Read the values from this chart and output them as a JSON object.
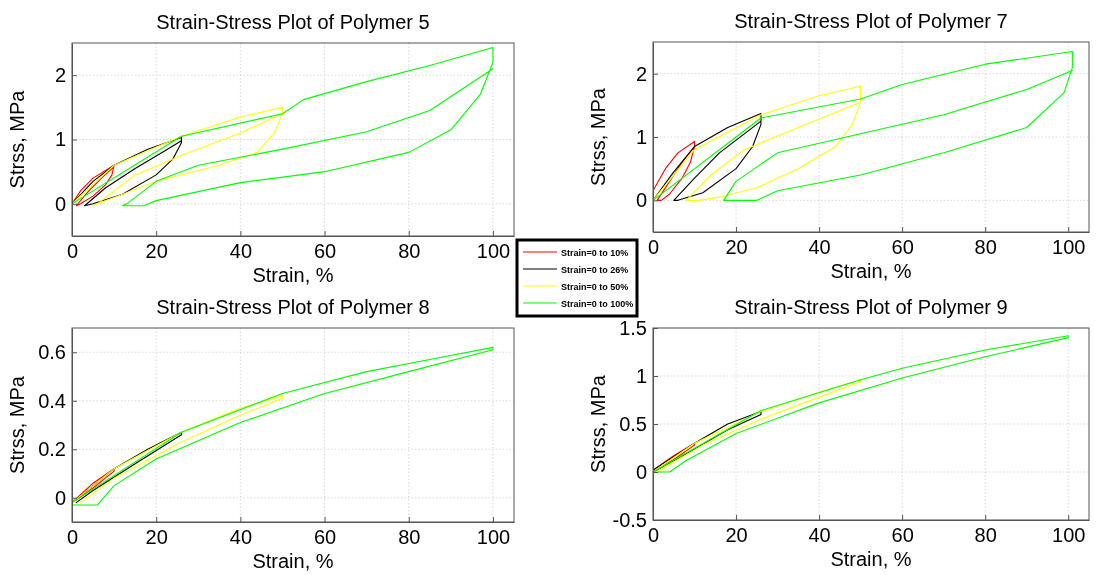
{
  "chart_data": [
    {
      "type": "line",
      "title": "Strain-Stress Plot of Polymer 5",
      "xlabel": "Strain, %",
      "ylabel": "Strss, MPa",
      "xlim": [
        0,
        105
      ],
      "xticks": [
        0,
        20,
        40,
        60,
        80,
        100
      ],
      "ylim": [
        -0.5,
        2.5
      ],
      "yticks": [
        0,
        1,
        2
      ],
      "grid": true,
      "legend": "bottom right",
      "marker": "none",
      "line_style": "solid",
      "series": [
        {
          "name": "Strain=0 to 10%",
          "color": "#ff0000",
          "x": [
            0,
            2,
            5,
            10,
            9.5,
            8,
            5,
            2,
            1,
            1,
            4,
            7,
            10
          ],
          "values": [
            0,
            0.2,
            0.4,
            0.6,
            0.45,
            0.3,
            0.12,
            0,
            -0.03,
            -0.03,
            0.2,
            0.4,
            0.58
          ]
        },
        {
          "name": "Strain=0 to 26%",
          "color": "#000000",
          "x": [
            0,
            5,
            10,
            18,
            26,
            26,
            24,
            20,
            12,
            5,
            3,
            3,
            8,
            15,
            22,
            26
          ],
          "values": [
            0,
            0.35,
            0.6,
            0.85,
            1.03,
            0.95,
            0.7,
            0.45,
            0.15,
            0,
            -0.03,
            -0.03,
            0.25,
            0.55,
            0.82,
            0.98
          ]
        },
        {
          "name": "Strain=0 to 50%",
          "color": "#ffff00",
          "x": [
            0,
            10,
            26,
            40,
            50,
            50,
            48,
            44,
            35,
            20,
            10,
            6,
            5,
            6,
            15,
            26,
            40,
            50
          ],
          "values": [
            0,
            0.6,
            1.05,
            1.35,
            1.5,
            1.4,
            1.1,
            0.8,
            0.6,
            0.35,
            0.1,
            0,
            -0.03,
            0,
            0.45,
            0.75,
            1.1,
            1.4
          ]
        },
        {
          "name": "Strain=0 to 100%",
          "color": "#00ff00",
          "x": [
            0,
            26,
            50,
            55,
            70,
            85,
            100,
            100,
            97,
            90,
            80,
            60,
            40,
            20,
            17,
            12,
            13,
            20,
            30,
            50,
            70,
            85,
            100
          ],
          "values": [
            0,
            1.05,
            1.4,
            1.62,
            1.9,
            2.15,
            2.43,
            2.2,
            1.7,
            1.15,
            0.8,
            0.5,
            0.33,
            0.05,
            -0.03,
            -0.03,
            0,
            0.35,
            0.6,
            0.85,
            1.12,
            1.45,
            2.1
          ]
        }
      ]
    },
    {
      "type": "line",
      "title": "Strain-Stress Plot of Polymer 7",
      "xlabel": "Strain, %",
      "ylabel": "Strss, MPa",
      "xlim": [
        0,
        105
      ],
      "xticks": [
        0,
        20,
        40,
        60,
        80,
        100
      ],
      "ylim": [
        -0.5,
        2.5
      ],
      "yticks": [
        0,
        1,
        2
      ],
      "grid": true,
      "marker": "none",
      "line_style": "solid",
      "series": [
        {
          "color": "#ff0000",
          "x": [
            0,
            3,
            6,
            10,
            10,
            9,
            7,
            4,
            2,
            1,
            4,
            7,
            10
          ],
          "values": [
            0.15,
            0.5,
            0.75,
            0.93,
            0.85,
            0.6,
            0.35,
            0.1,
            0,
            0,
            0.3,
            0.6,
            0.85
          ]
        },
        {
          "color": "#000000",
          "x": [
            0,
            5,
            10,
            18,
            26,
            26,
            24,
            20,
            12,
            6,
            5,
            10,
            16,
            22,
            26
          ],
          "values": [
            0,
            0.45,
            0.85,
            1.15,
            1.37,
            1.2,
            0.85,
            0.5,
            0.12,
            0,
            0,
            0.35,
            0.75,
            1.05,
            1.25
          ]
        },
        {
          "color": "#ffff00",
          "x": [
            0,
            10,
            26,
            40,
            50,
            50,
            48,
            44,
            35,
            25,
            16,
            11,
            8,
            14,
            22,
            35,
            50
          ],
          "values": [
            0,
            0.8,
            1.35,
            1.65,
            1.8,
            1.55,
            1.2,
            0.85,
            0.5,
            0.2,
            0.05,
            0,
            0,
            0.4,
            0.8,
            1.15,
            1.55
          ]
        },
        {
          "color": "#00ff00",
          "x": [
            0,
            26,
            50,
            60,
            80,
            101,
            101,
            99,
            90,
            70,
            50,
            30,
            25,
            20,
            17,
            20,
            30,
            50,
            70,
            90,
            101
          ],
          "values": [
            0,
            1.3,
            1.6,
            1.83,
            2.15,
            2.35,
            2.1,
            1.7,
            1.15,
            0.75,
            0.4,
            0.15,
            0,
            0,
            0,
            0.3,
            0.75,
            1.05,
            1.35,
            1.75,
            2.05
          ]
        }
      ]
    },
    {
      "type": "line",
      "title": "Strain-Stress Plot of Polymer 8",
      "xlabel": "Strain, %",
      "ylabel": "Strss, MPa",
      "xlim": [
        0,
        105
      ],
      "xticks": [
        0,
        20,
        40,
        60,
        80,
        100
      ],
      "ylim": [
        -0.1,
        0.7
      ],
      "yticks": [
        0,
        0.2,
        0.4,
        0.6
      ],
      "grid": true,
      "marker": "none",
      "line_style": "solid",
      "series": [
        {
          "color": "#ff0000",
          "x": [
            0,
            5,
            10,
            10,
            5,
            1
          ],
          "values": [
            -0.02,
            0.06,
            0.12,
            0.11,
            0.04,
            -0.01
          ]
        },
        {
          "color": "#000000",
          "x": [
            0,
            10,
            18,
            26,
            26,
            15,
            5,
            1
          ],
          "values": [
            -0.02,
            0.12,
            0.2,
            0.27,
            0.26,
            0.14,
            0.03,
            -0.02
          ]
        },
        {
          "color": "#ffff00",
          "x": [
            0,
            10,
            26,
            40,
            50,
            50,
            40,
            26,
            10,
            2
          ],
          "values": [
            -0.02,
            0.12,
            0.27,
            0.37,
            0.42,
            0.41,
            0.34,
            0.23,
            0.08,
            -0.02
          ]
        },
        {
          "color": "#00ff00",
          "x": [
            0,
            26,
            50,
            70,
            85,
            100,
            100,
            80,
            60,
            40,
            20,
            10,
            6,
            0
          ],
          "values": [
            -0.02,
            0.27,
            0.43,
            0.52,
            0.57,
            0.62,
            0.61,
            0.52,
            0.43,
            0.31,
            0.16,
            0.05,
            -0.03,
            -0.03
          ]
        }
      ]
    },
    {
      "type": "line",
      "title": "Strain-Stress Plot of Polymer 9",
      "xlabel": "Strain, %",
      "ylabel": "Strss, MPa",
      "xlim": [
        0,
        105
      ],
      "xticks": [
        0,
        20,
        40,
        60,
        80,
        100
      ],
      "ylim": [
        -0.5,
        1.5
      ],
      "yticks": [
        -0.5,
        0,
        0.5,
        1,
        1.5
      ],
      "grid": true,
      "marker": "none",
      "line_style": "solid",
      "series": [
        {
          "color": "#ff0000",
          "x": [
            0,
            5,
            10,
            10,
            5,
            0
          ],
          "values": [
            0.02,
            0.17,
            0.3,
            0.28,
            0.13,
            0
          ]
        },
        {
          "color": "#000000",
          "x": [
            0,
            10,
            18,
            26,
            26,
            18,
            10,
            0
          ],
          "values": [
            0.02,
            0.3,
            0.5,
            0.63,
            0.6,
            0.44,
            0.24,
            0
          ]
        },
        {
          "color": "#ffff00",
          "x": [
            0,
            10,
            26,
            40,
            50,
            50,
            40,
            26,
            12,
            1
          ],
          "values": [
            0,
            0.3,
            0.63,
            0.83,
            0.96,
            0.94,
            0.78,
            0.55,
            0.28,
            0
          ]
        },
        {
          "color": "#00ff00",
          "x": [
            0,
            26,
            50,
            60,
            80,
            100,
            100,
            80,
            60,
            40,
            20,
            8,
            4,
            1
          ],
          "values": [
            0,
            0.64,
            0.96,
            1.08,
            1.27,
            1.42,
            1.4,
            1.2,
            0.98,
            0.72,
            0.4,
            0.12,
            0,
            0
          ]
        }
      ]
    }
  ]
}
